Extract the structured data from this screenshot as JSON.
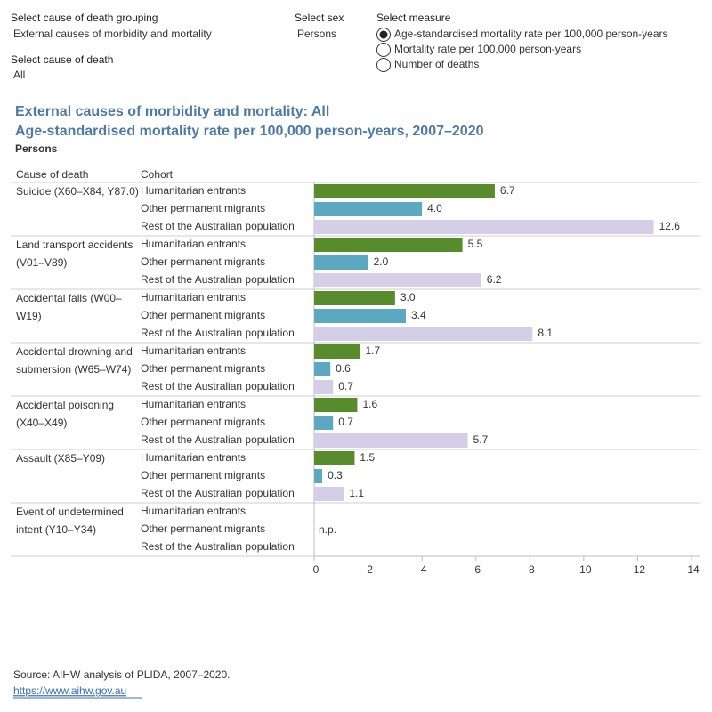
{
  "controls": {
    "grouping": {
      "label": "Select cause of death grouping",
      "value": "External causes of morbidity and mortality"
    },
    "cause": {
      "label": "Select cause of death",
      "value": "All"
    },
    "sex": {
      "label": "Select sex",
      "value": "Persons"
    },
    "measure": {
      "label": "Select measure",
      "options": [
        "Age-standardised mortality rate per 100,000 person-years",
        "Mortality rate per 100,000 person-years",
        "Number of deaths"
      ],
      "selected": 0
    }
  },
  "chart_data": {
    "type": "bar",
    "orientation": "horizontal",
    "title": "External causes of morbidity and mortality: All",
    "subtitle": "Age-standardised mortality rate per 100,000 person-years, 2007–2020",
    "sex_label": "Persons",
    "row_header": "Cause of death",
    "cohort_header": "Cohort",
    "categories": [
      "Suicide (X60–X84, Y87.0)",
      "Land transport accidents (V01–V89)",
      "Accidental falls (W00–W19)",
      "Accidental drowning and submersion (W65–W74)",
      "Accidental poisoning (X40–X49)",
      "Assault (X85–Y09)",
      "Event of undetermined intent (Y10–Y34)"
    ],
    "series": [
      {
        "name": "Humanitarian entrants",
        "color": "#578b2b",
        "values": [
          6.7,
          5.5,
          3.0,
          1.7,
          1.6,
          1.5,
          null
        ],
        "value_labels": [
          "6.7",
          "5.5",
          "3.0",
          "1.7",
          "1.6",
          "1.5",
          null
        ]
      },
      {
        "name": "Other permanent migrants",
        "color": "#5ba8c0",
        "values": [
          4.0,
          2.0,
          3.4,
          0.6,
          0.7,
          0.3,
          null
        ],
        "value_labels": [
          "4.0",
          "2.0",
          "3.4",
          "0.6",
          "0.7",
          "0.3",
          null
        ]
      },
      {
        "name": "Rest of the Australian population",
        "color": "#d4cfe7",
        "values": [
          12.6,
          6.2,
          8.1,
          0.7,
          5.7,
          1.1,
          null
        ],
        "value_labels": [
          "12.6",
          "6.2",
          "8.1",
          "0.7",
          "5.7",
          "1.1",
          null
        ]
      }
    ],
    "annotation": "n.p.",
    "xlim": [
      0,
      14
    ],
    "xticks": [
      0,
      2,
      4,
      6,
      8,
      10,
      12,
      14
    ]
  },
  "footer": {
    "source": "Source: AIHW analysis of PLIDA, 2007–2020.",
    "link": "https://www.aihw.gov.au"
  }
}
